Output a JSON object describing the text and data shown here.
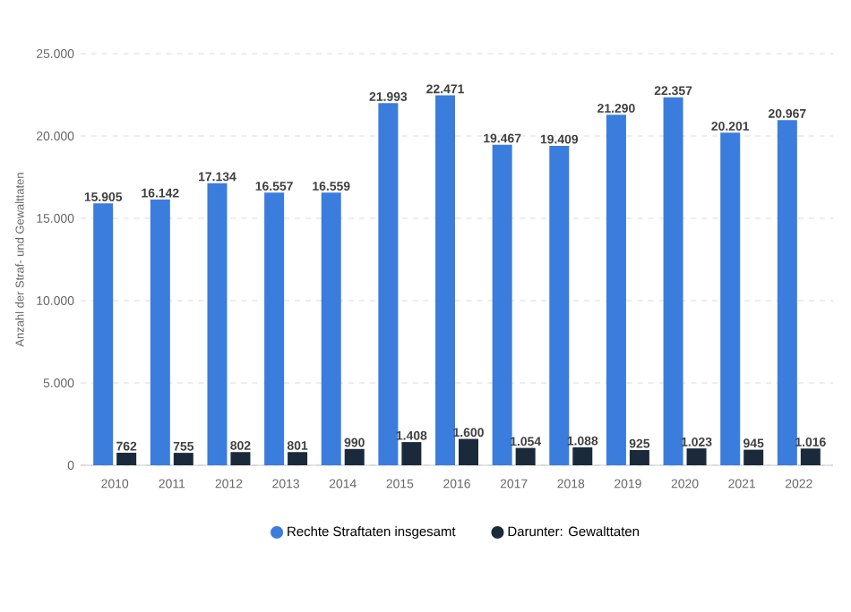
{
  "chart_data": {
    "type": "bar",
    "ylabel": "Anzahl der Straf- und Gewalttaten",
    "categories": [
      "2010",
      "2011",
      "2012",
      "2013",
      "2014",
      "2015",
      "2016",
      "2017",
      "2018",
      "2019",
      "2020",
      "2021",
      "2022"
    ],
    "series": [
      {
        "name": "Rechte Straftaten insgesamt",
        "color": "#3b7ddd",
        "values": [
          15905,
          16142,
          17134,
          16557,
          16559,
          21993,
          22471,
          19467,
          19409,
          21290,
          22357,
          20201,
          20967
        ],
        "value_labels": [
          "15.905",
          "16.142",
          "17.134",
          "16.557",
          "16.559",
          "21.993",
          "22.471",
          "19.467",
          "19.409",
          "21.290",
          "22.357",
          "20.201",
          "20.967"
        ]
      },
      {
        "name": "Darunter: Gewalttaten",
        "color": "#1b2a3b",
        "values": [
          762,
          755,
          802,
          801,
          990,
          1408,
          1600,
          1054,
          1088,
          925,
          1023,
          945,
          1016
        ],
        "value_labels": [
          "762",
          "755",
          "802",
          "801",
          "990",
          "1.408",
          "1.600",
          "1.054",
          "1.088",
          "925",
          "1.023",
          "945",
          "1.016"
        ]
      }
    ],
    "ylim": [
      0,
      25000
    ],
    "yticks": [
      0,
      {
        "value": 5000,
        "label": "5.000"
      },
      {
        "value": 10000,
        "label": "10.000"
      },
      {
        "value": 15000,
        "label": "15.000"
      },
      {
        "value": 20000,
        "label": "20.000"
      },
      {
        "value": 25000,
        "label": "25.000"
      }
    ],
    "grid": "y",
    "legend": "bottom"
  }
}
